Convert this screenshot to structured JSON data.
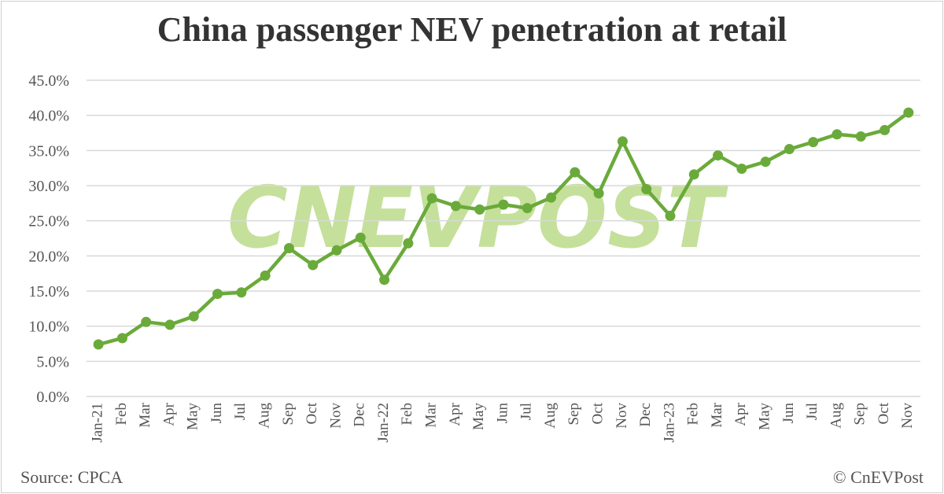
{
  "chart_data": {
    "type": "line",
    "title": "China passenger NEV penetration at retail",
    "xlabel": "",
    "ylabel": "",
    "ylim": [
      0,
      45
    ],
    "ytick_labels": [
      "0.0%",
      "5.0%",
      "10.0%",
      "15.0%",
      "20.0%",
      "25.0%",
      "30.0%",
      "35.0%",
      "40.0%",
      "45.0%"
    ],
    "grid": true,
    "categories": [
      "Jan-21",
      "Feb",
      "Mar",
      "Apr",
      "May",
      "Jun",
      "Jul",
      "Aug",
      "Sep",
      "Oct",
      "Nov",
      "Dec",
      "Jan-22",
      "Feb",
      "Mar",
      "Apr",
      "May",
      "Jun",
      "Jul",
      "Aug",
      "Sep",
      "Oct",
      "Nov",
      "Dec",
      "Jan-23",
      "Feb",
      "Mar",
      "Apr",
      "May",
      "Jun",
      "Jul",
      "Aug",
      "Sep",
      "Oct",
      "Nov"
    ],
    "series": [
      {
        "values": [
          7.4,
          8.3,
          10.6,
          10.2,
          11.4,
          14.6,
          14.8,
          17.2,
          21.1,
          18.7,
          20.8,
          22.6,
          16.6,
          21.8,
          28.2,
          27.1,
          26.6,
          27.3,
          26.8,
          28.3,
          31.9,
          28.9,
          36.3,
          29.5,
          25.7,
          31.6,
          34.3,
          32.4,
          33.4,
          35.2,
          36.2,
          37.3,
          37.0,
          37.9,
          40.4
        ]
      }
    ],
    "line_color": "#6aaa3a"
  },
  "footer": {
    "source": "Source: CPCA",
    "copyright": "© CnEVPost"
  },
  "watermark": "CNEVPOST"
}
